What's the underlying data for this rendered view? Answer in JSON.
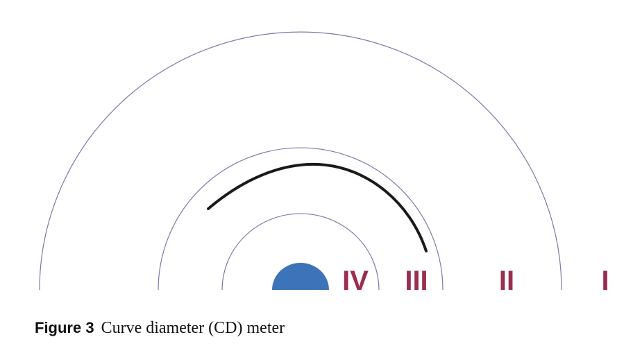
{
  "figure": {
    "label": "Figure 3",
    "caption": "Curve diameter (CD) meter"
  },
  "zones": [
    {
      "label": "IV"
    },
    {
      "label": "III"
    },
    {
      "label": "II"
    },
    {
      "label": "I"
    }
  ],
  "colors": {
    "rings": "#7e79a6",
    "curve": "#1a1a1a",
    "zone_labels": "#9b2d4f",
    "center_dot": "#3d73b8"
  }
}
